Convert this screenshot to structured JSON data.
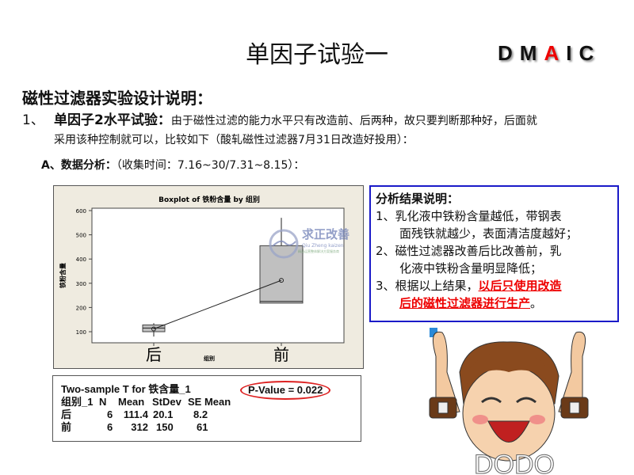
{
  "title": "单因子试验一",
  "dmaic": [
    "D",
    "M",
    "A",
    "I",
    "C"
  ],
  "heading": "磁性过滤器实验设计说明：",
  "item1": {
    "num": "1、",
    "lead": "单因子2水平试验：",
    "line1": "由于磁性过滤的能力水平只有改造前、后两种，故只要判断那种好，后面就",
    "line2": "采用该种控制就可以，比较如下（酸轧磁性过滤器7月31日改造好投用）："
  },
  "itemA": {
    "lead": "A、数据分析：",
    "text": "（收集时间：7.16~30/7.31~8.15）："
  },
  "watermark": {
    "cn": "求正改善",
    "en": "Qiu Zheng kaizen",
    "sub": "精益运营整体解决方案服务商"
  },
  "chart_data": {
    "type": "boxplot",
    "title": "Boxplot of 铁粉含量 by 组别",
    "xlabel": "组别",
    "ylabel": "铁粉含量",
    "ylim": [
      50,
      610
    ],
    "yticks": [
      100,
      200,
      300,
      400,
      500,
      600
    ],
    "categories": [
      "后",
      "前"
    ],
    "boxes": [
      {
        "category": "后",
        "min": 80,
        "q1": 100,
        "median": 115,
        "q3": 128,
        "max": 135,
        "mean": 111.4
      },
      {
        "category": "前",
        "min": 218,
        "q1": 218,
        "median": 225,
        "q3": 455,
        "max": 570,
        "mean": 312
      }
    ],
    "mean_connect_line": true
  },
  "stats": {
    "title": "Two-sample T for 铁含量_1",
    "pvalue": "P-Value = 0.022",
    "headers": [
      "组别_1",
      "N",
      "Mean",
      "StDev",
      "SE Mean"
    ],
    "rows": [
      [
        "后",
        "6",
        "111.4",
        "20.1",
        "8.2"
      ],
      [
        "前",
        "6",
        "312",
        "150",
        "61"
      ]
    ]
  },
  "result": {
    "title": "分析结果说明：",
    "l1a": "1、乳化液中铁粉含量越低，带钢表",
    "l1b": "面残铁就越少，表面清洁度越好；",
    "l2a": "2、磁性过滤器改善后比改善前，乳",
    "l2b": "化液中铁粉含量明显降低；",
    "l3a": "3、根据以上结果，",
    "l3red1": "以后只使用改造",
    "l3red2": "后的磁性过滤器进行生产",
    "l3end": "。"
  },
  "cartoon_text": "DODO"
}
